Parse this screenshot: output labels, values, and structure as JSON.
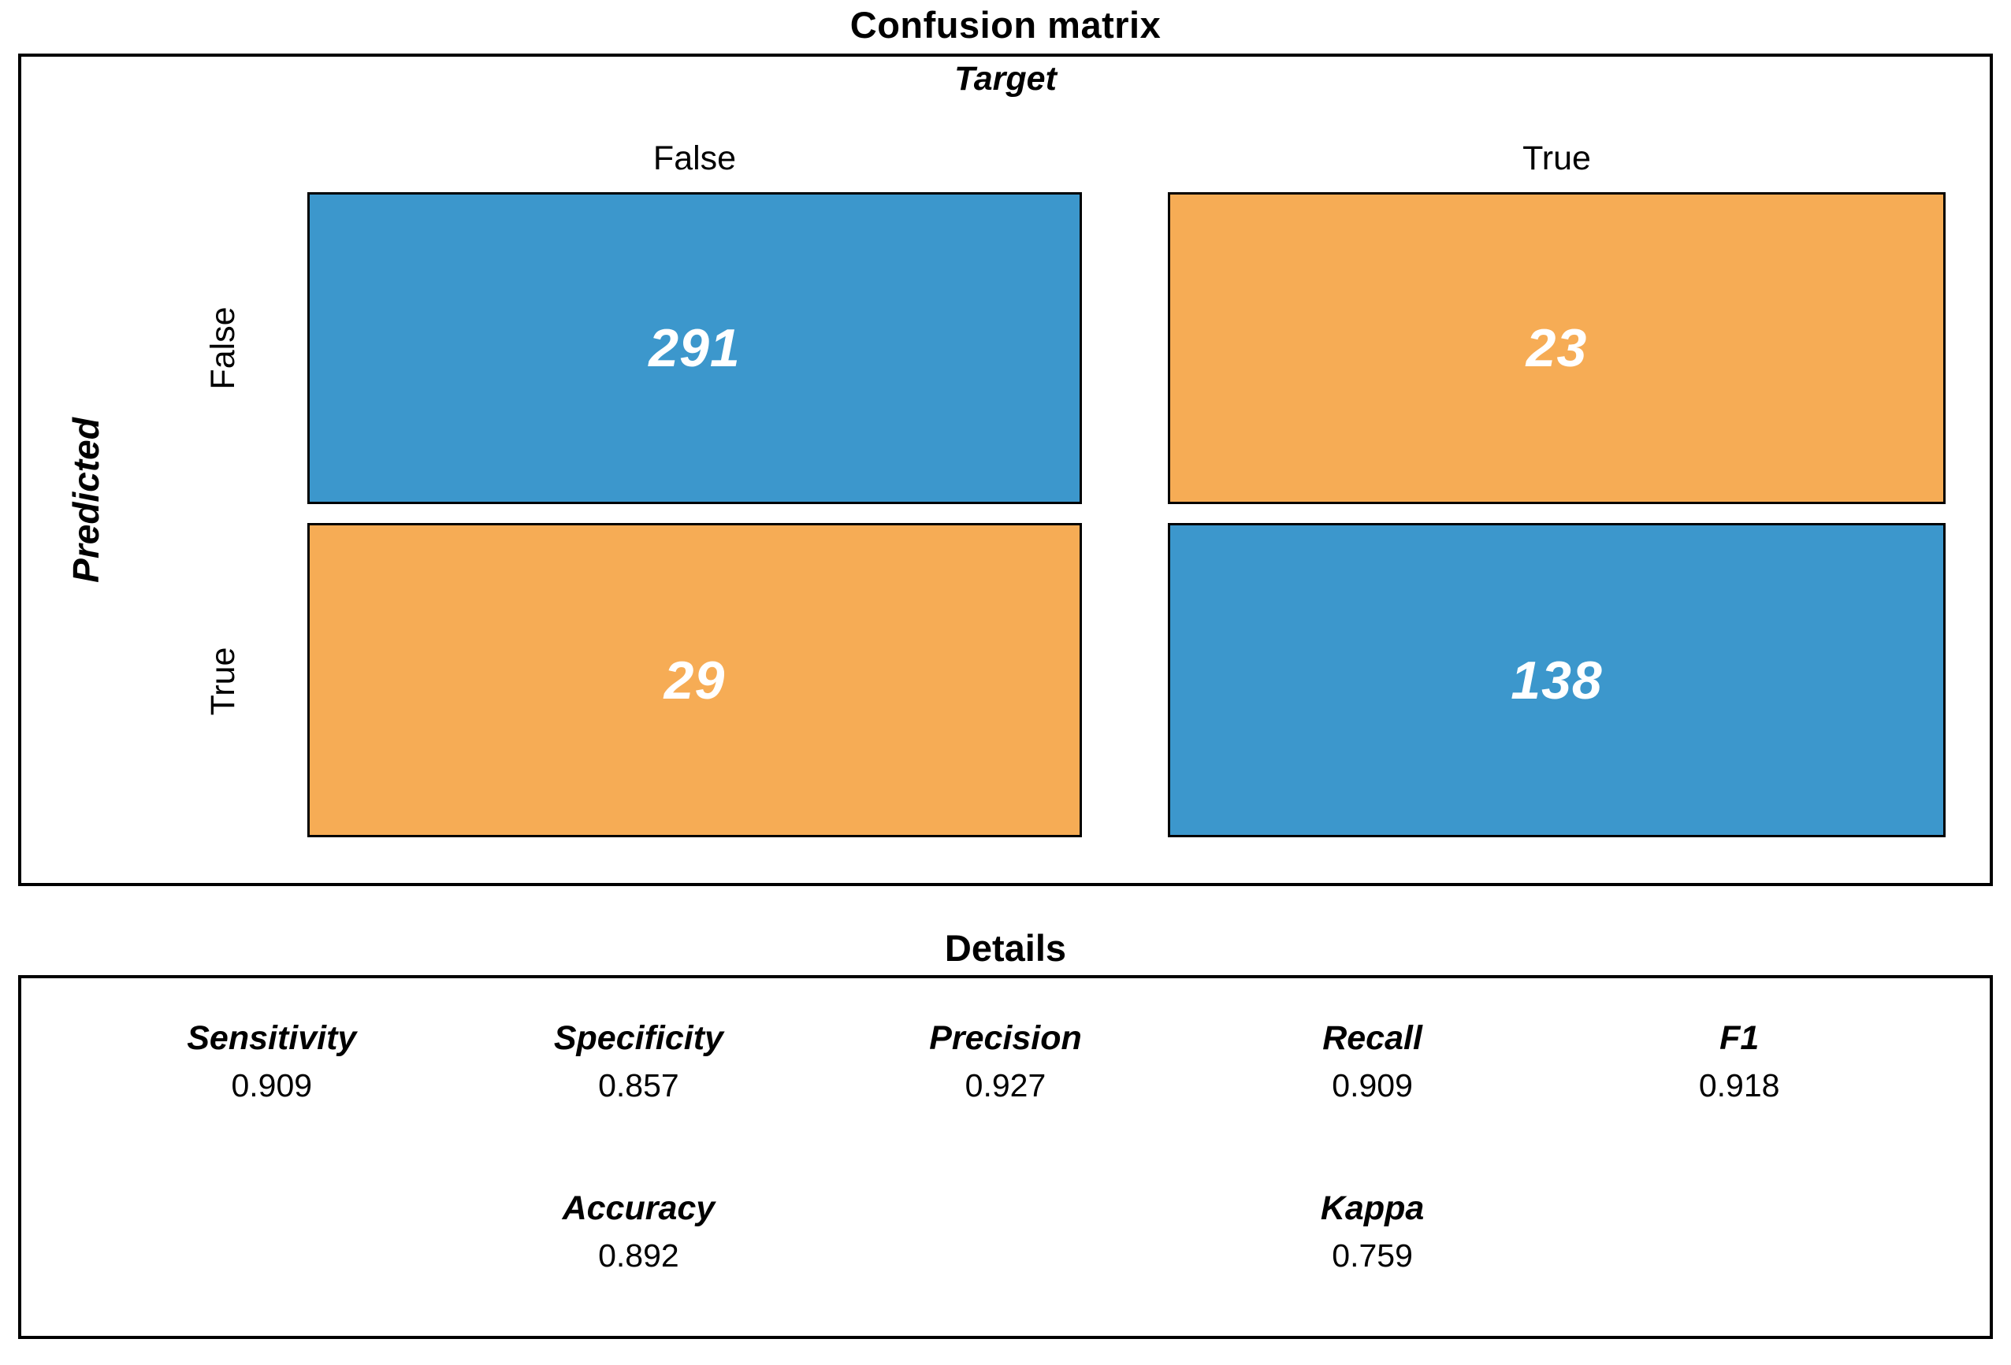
{
  "colors": {
    "match_blue": "#3C97CC",
    "mismatch_orange": "#F6AC55",
    "cell_text": "#FFFFFF",
    "border": "#000000",
    "background": "#FFFFFF"
  },
  "matrix": {
    "title": "Confusion matrix",
    "target_label": "Target",
    "predicted_label": "Predicted",
    "col_headers": [
      "False",
      "True"
    ],
    "row_headers": [
      "False",
      "True"
    ],
    "cells": {
      "predicted_false_target_false": "291",
      "predicted_false_target_true": "23",
      "predicted_true_target_false": "29",
      "predicted_true_target_true": "138"
    }
  },
  "details": {
    "title": "Details",
    "metrics_row1": [
      {
        "label": "Sensitivity",
        "value": "0.909"
      },
      {
        "label": "Specificity",
        "value": "0.857"
      },
      {
        "label": "Precision",
        "value": "0.927"
      },
      {
        "label": "Recall",
        "value": "0.909"
      },
      {
        "label": "F1",
        "value": "0.918"
      }
    ],
    "metrics_row2": [
      {
        "label": "Accuracy",
        "value": "0.892"
      },
      {
        "label": "Kappa",
        "value": "0.759"
      }
    ]
  },
  "chart_data": {
    "type": "heatmap",
    "title": "Confusion matrix",
    "xlabel": "Target",
    "ylabel": "Predicted",
    "x_categories": [
      "False",
      "True"
    ],
    "y_categories": [
      "False",
      "True"
    ],
    "values": [
      [
        291,
        23
      ],
      [
        29,
        138
      ]
    ],
    "cell_colors": [
      [
        "#3C97CC",
        "#F6AC55"
      ],
      [
        "#F6AC55",
        "#3C97CC"
      ]
    ],
    "value_text_color": "#FFFFFF",
    "legend_position": "none",
    "grid": false,
    "annotations": {
      "panel_title": "Details",
      "metrics": {
        "Sensitivity": 0.909,
        "Specificity": 0.857,
        "Precision": 0.927,
        "Recall": 0.909,
        "F1": 0.918,
        "Accuracy": 0.892,
        "Kappa": 0.759
      }
    }
  }
}
